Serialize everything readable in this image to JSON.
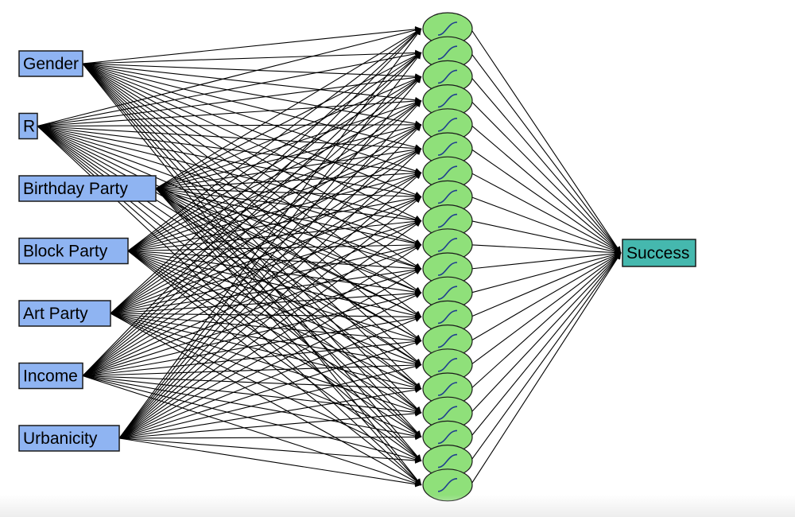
{
  "inputs": [
    "Gender",
    "R",
    "Birthday Party",
    "Block Party",
    "Art Party",
    "Income",
    "Urbanicity"
  ],
  "hidden_count": 20,
  "output": "Success",
  "colors": {
    "input_fill": "#8fb4f2",
    "hidden_fill": "#8fe07a",
    "output_fill": "#45b8ae",
    "edge": "#000000",
    "node_stroke": "#1a1a1a"
  }
}
